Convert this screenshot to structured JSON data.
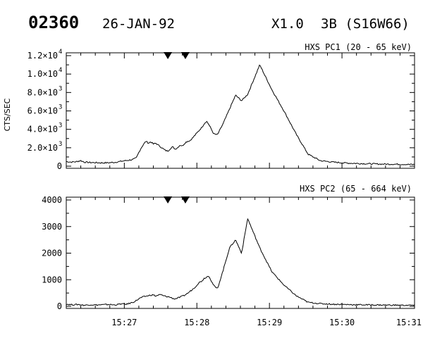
{
  "header": {
    "id": "02360",
    "date": "26-JAN-92",
    "class": "X1.0",
    "optical": "3B (S16W66)"
  },
  "colors": {
    "foreground": "#000000",
    "background": "#ffffff"
  },
  "chart_data": [
    {
      "type": "line",
      "label": "HXS PC1 (20 - 65 keV)",
      "ylabel": "CTS/SEC",
      "xlim": [
        "15:26:12",
        "15:31:00"
      ],
      "ylim": [
        0,
        12000
      ],
      "y_ticks": [
        {
          "value": 0,
          "mant": "0",
          "exp": ""
        },
        {
          "value": 2000,
          "mant": "2.0×10",
          "exp": "3"
        },
        {
          "value": 4000,
          "mant": "4.0×10",
          "exp": "3"
        },
        {
          "value": 6000,
          "mant": "6.0×10",
          "exp": "3"
        },
        {
          "value": 8000,
          "mant": "8.0×10",
          "exp": "3"
        },
        {
          "value": 10000,
          "mant": "1.0×10",
          "exp": "4"
        },
        {
          "value": 12000,
          "mant": "1.2×10",
          "exp": "4"
        }
      ],
      "markers": [
        84.0,
        98.5
      ],
      "x": [
        0,
        4,
        8,
        12,
        15,
        20,
        25,
        30,
        35,
        40,
        45,
        50,
        55,
        58,
        60,
        62,
        64,
        66,
        68,
        70,
        72,
        74,
        76,
        78,
        80,
        82,
        84,
        86,
        88,
        90,
        92,
        94,
        96,
        98,
        100,
        102,
        104,
        106,
        108,
        110,
        112,
        114,
        116,
        118,
        120,
        122,
        125,
        130,
        135,
        140,
        145,
        150,
        160,
        170,
        180,
        190,
        200,
        210,
        220,
        230,
        240,
        250,
        260,
        270,
        280,
        288
      ],
      "y": [
        500,
        450,
        480,
        600,
        440,
        400,
        380,
        360,
        370,
        420,
        520,
        620,
        720,
        900,
        1500,
        2000,
        2400,
        2700,
        2500,
        2650,
        2400,
        2500,
        2300,
        2100,
        1900,
        1700,
        1650,
        1900,
        2100,
        1850,
        2000,
        2300,
        2200,
        2500,
        2700,
        2750,
        3000,
        3300,
        3600,
        3900,
        4200,
        4600,
        4900,
        4500,
        4000,
        3500,
        3400,
        4700,
        6200,
        7700,
        7100,
        7800,
        11000,
        8300,
        6000,
        3500,
        1300,
        600,
        450,
        350,
        300,
        260,
        230,
        220,
        200,
        180
      ]
    },
    {
      "type": "line",
      "label": "HXS PC2 (65 - 664 keV)",
      "ylabel": "",
      "xlim": [
        "15:26:12",
        "15:31:00"
      ],
      "ylim": [
        0,
        4000
      ],
      "y_ticks": [
        {
          "value": 0,
          "mant": "0",
          "exp": ""
        },
        {
          "value": 1000,
          "mant": "1000",
          "exp": ""
        },
        {
          "value": 2000,
          "mant": "2000",
          "exp": ""
        },
        {
          "value": 3000,
          "mant": "3000",
          "exp": ""
        },
        {
          "value": 4000,
          "mant": "4000",
          "exp": ""
        }
      ],
      "markers": [
        84.0,
        98.5
      ],
      "x": [
        0,
        5,
        10,
        15,
        20,
        25,
        30,
        35,
        40,
        45,
        50,
        55,
        58,
        60,
        62,
        64,
        66,
        68,
        70,
        72,
        74,
        76,
        78,
        80,
        82,
        84,
        86,
        88,
        90,
        92,
        94,
        96,
        98,
        100,
        102,
        104,
        106,
        108,
        110,
        112,
        114,
        116,
        118,
        120,
        122,
        125,
        130,
        135,
        140,
        145,
        150,
        160,
        170,
        180,
        190,
        200,
        210,
        220,
        230,
        240,
        250,
        260,
        270,
        280,
        288
      ],
      "y": [
        80,
        60,
        70,
        40,
        60,
        50,
        60,
        70,
        50,
        90,
        80,
        150,
        220,
        280,
        330,
        360,
        380,
        400,
        420,
        430,
        380,
        420,
        440,
        400,
        380,
        360,
        340,
        300,
        280,
        310,
        340,
        380,
        420,
        480,
        550,
        620,
        700,
        800,
        900,
        950,
        1050,
        1100,
        1150,
        950,
        780,
        650,
        1400,
        2200,
        2500,
        2000,
        3300,
        2200,
        1300,
        800,
        400,
        150,
        100,
        80,
        70,
        60,
        55,
        50,
        45,
        40,
        40
      ]
    }
  ],
  "x_ticks": [
    {
      "t": 48,
      "label": "15:27"
    },
    {
      "t": 108,
      "label": "15:28"
    },
    {
      "t": 168,
      "label": "15:29"
    },
    {
      "t": 228,
      "label": "15:30"
    },
    {
      "t": 288,
      "label": "15:31"
    }
  ]
}
